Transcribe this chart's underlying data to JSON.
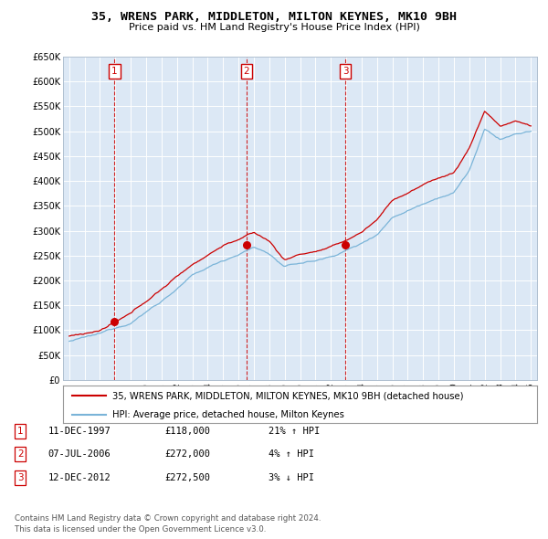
{
  "title": "35, WRENS PARK, MIDDLETON, MILTON KEYNES, MK10 9BH",
  "subtitle": "Price paid vs. HM Land Registry's House Price Index (HPI)",
  "y_ticks": [
    0,
    50000,
    100000,
    150000,
    200000,
    250000,
    300000,
    350000,
    400000,
    450000,
    500000,
    550000,
    600000,
    650000
  ],
  "y_tick_labels": [
    "£0",
    "£50K",
    "£100K",
    "£150K",
    "£200K",
    "£250K",
    "£300K",
    "£350K",
    "£400K",
    "£450K",
    "£500K",
    "£550K",
    "£600K",
    "£650K"
  ],
  "sale_dates": [
    1997.94,
    2006.52,
    2012.95
  ],
  "sale_prices": [
    118000,
    272000,
    272500
  ],
  "sale_labels": [
    "1",
    "2",
    "3"
  ],
  "hpi_color": "#7ab4d8",
  "price_color": "#cc0000",
  "background_color": "#dce8f5",
  "grid_color": "#ffffff",
  "legend_label_price": "35, WRENS PARK, MIDDLETON, MILTON KEYNES, MK10 9BH (detached house)",
  "legend_label_hpi": "HPI: Average price, detached house, Milton Keynes",
  "table_rows": [
    {
      "num": "1",
      "date": "11-DEC-1997",
      "price": "£118,000",
      "pct": "21%",
      "dir": "↑",
      "vs": "HPI"
    },
    {
      "num": "2",
      "date": "07-JUL-2006",
      "price": "£272,000",
      "pct": "4%",
      "dir": "↑",
      "vs": "HPI"
    },
    {
      "num": "3",
      "date": "12-DEC-2012",
      "price": "£272,500",
      "pct": "3%",
      "dir": "↓",
      "vs": "HPI"
    }
  ],
  "footnote": "Contains HM Land Registry data © Crown copyright and database right 2024.\nThis data is licensed under the Open Government Licence v3.0."
}
